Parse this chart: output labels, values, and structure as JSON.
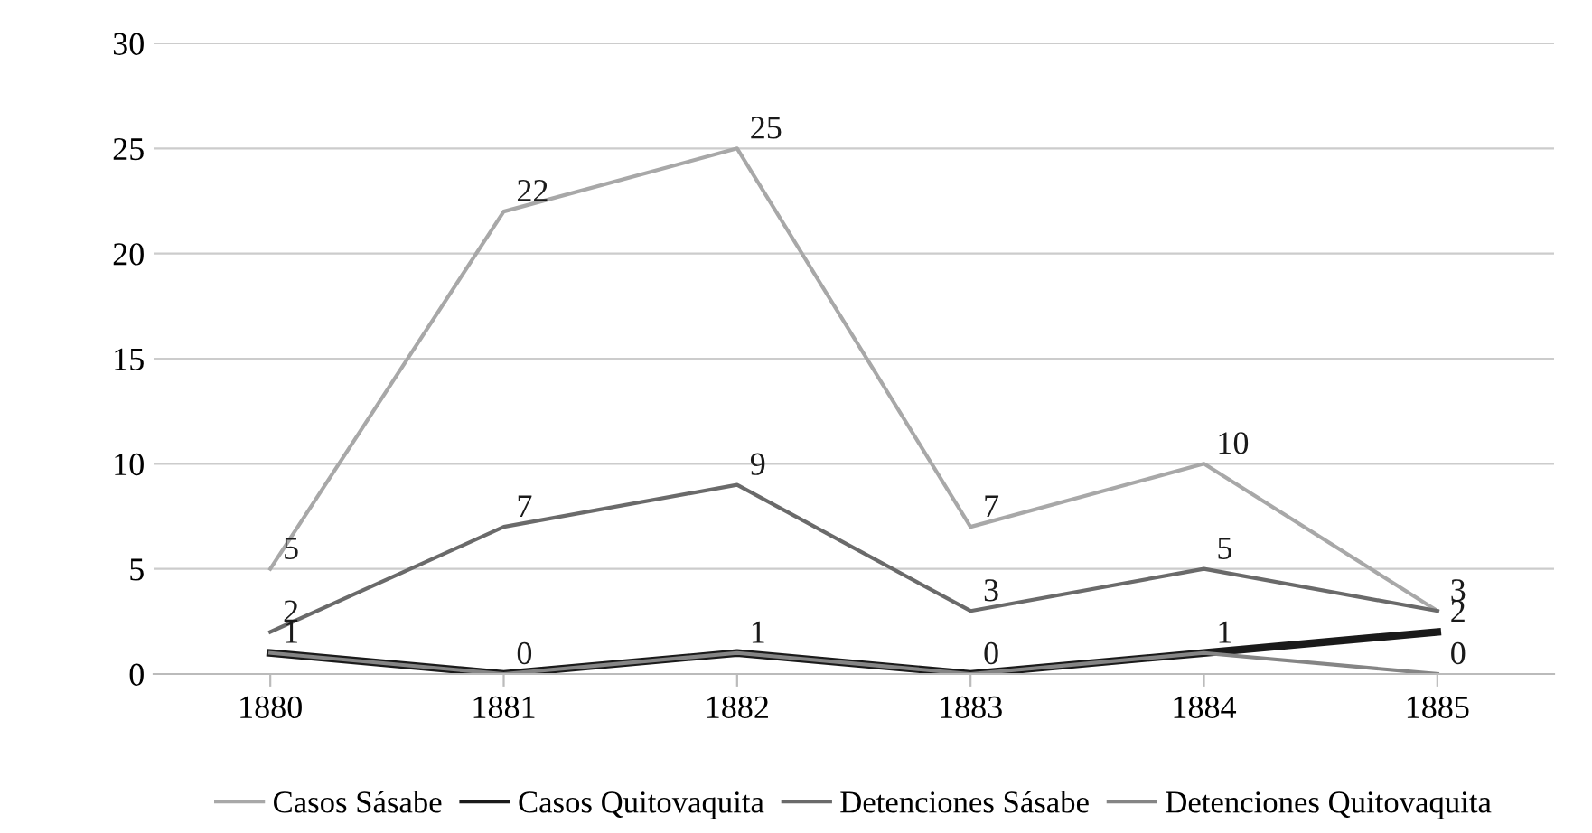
{
  "chart_data": {
    "type": "line",
    "categories": [
      "1880",
      "1881",
      "1882",
      "1883",
      "1884",
      "1885"
    ],
    "ylim": [
      0,
      30
    ],
    "yticks": [
      0,
      5,
      10,
      15,
      20,
      25,
      30
    ],
    "grid": "y",
    "legend": "bottom",
    "marker": "none",
    "line_style": "solid",
    "series": [
      {
        "name": "Casos Sásabe",
        "color": "#a8a8a8",
        "values": [
          5,
          22,
          25,
          7,
          10,
          3
        ],
        "value_labels": [
          "5",
          "22",
          "25",
          "7",
          "10",
          "3"
        ]
      },
      {
        "name": "Casos Quitovaquita",
        "color": "#1a1a1a",
        "values": [
          1,
          0,
          1,
          0,
          1,
          2
        ],
        "value_labels": [
          null,
          null,
          null,
          null,
          null,
          "2"
        ]
      },
      {
        "name": "Detenciones Sásabe",
        "color": "#6a6a6a",
        "values": [
          2,
          7,
          9,
          3,
          5,
          3
        ],
        "value_labels": [
          "2",
          "7",
          "9",
          "3",
          "5",
          null
        ]
      },
      {
        "name": "Detenciones Quitovaquita",
        "color": "#858585",
        "values": [
          1,
          0,
          1,
          0,
          1,
          0
        ],
        "value_labels": [
          "1",
          "0",
          "1",
          "0",
          "1",
          "0"
        ]
      }
    ]
  }
}
